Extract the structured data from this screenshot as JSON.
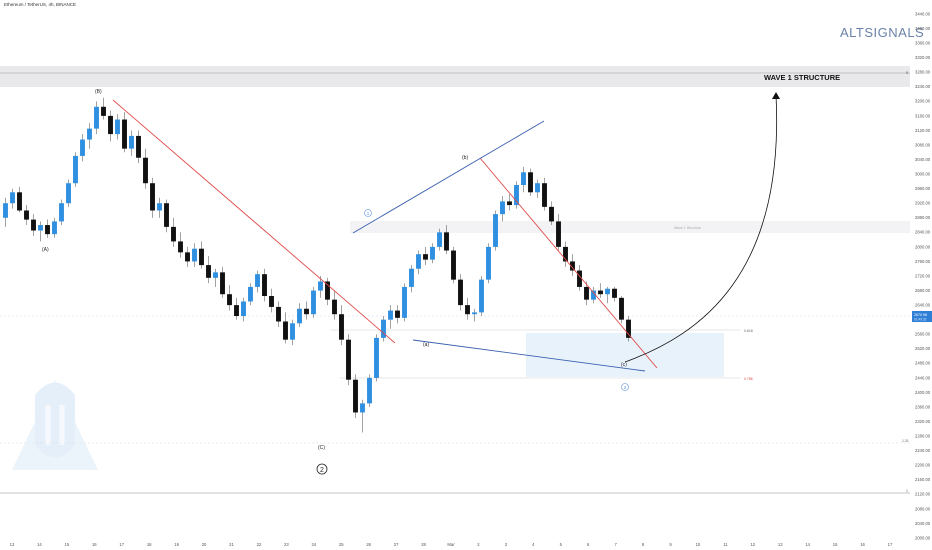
{
  "header": {
    "symbol": "Ethereum / TetherUS, 4h, BINANCE"
  },
  "brand": {
    "name": "ALTSIGNALS",
    "color": "#6a82a8"
  },
  "zones": {
    "wave1_label": "WAVE 1 STRUCTURE",
    "wave1_zero": "0",
    "support_label": "1",
    "fib_0618": "0.618",
    "fib_0786": "0.786",
    "fib_1_31": "1.31",
    "mid_box_label": "Wave 1 Structure"
  },
  "price_tag": {
    "value": "2670.98",
    "sub": "01:49:32",
    "color": "#2f7fd6"
  },
  "chart_data": {
    "type": "candlestick",
    "title": "Ethereum / TetherUS, 4h, BINANCE",
    "y_axis": {
      "min": 2000,
      "max": 3440,
      "ticks": [
        3440,
        3400,
        3360,
        3320,
        3280,
        3240,
        3200,
        3160,
        3120,
        3080,
        3040,
        3000,
        2960,
        2920,
        2880,
        2840,
        2800,
        2760,
        2720,
        2680,
        2640,
        2600,
        2560,
        2520,
        2480,
        2440,
        2400,
        2360,
        2320,
        2280,
        2240,
        2200,
        2160,
        2120,
        2080,
        2040,
        2000
      ]
    },
    "x_axis": {
      "ticks": [
        "13",
        "14",
        "15",
        "16",
        "17",
        "18",
        "19",
        "20",
        "21",
        "22",
        "23",
        "24",
        "25",
        "26",
        "27",
        "28",
        "Mar",
        "2",
        "3",
        "4",
        "5",
        "6",
        "7",
        "8",
        "9",
        "10",
        "11",
        "12",
        "13",
        "14",
        "15",
        "16",
        "17"
      ]
    },
    "last_price": 2670.98,
    "levels": [
      {
        "name": "Wave 1 structure",
        "price": 3255
      },
      {
        "name": "0.618",
        "price": 2580
      },
      {
        "name": "0.786",
        "price": 2470
      },
      {
        "name": "1.31",
        "price": 2288
      },
      {
        "name": "1",
        "price": 2175
      }
    ],
    "wave_labels": [
      {
        "text": "(B)",
        "time": 15.8,
        "price": 3235
      },
      {
        "text": "(A)",
        "time": 14.2,
        "price": 2800
      },
      {
        "text": "(C)",
        "time": 24.1,
        "price": 2262
      },
      {
        "text": "(b)",
        "time": 30.5,
        "price": 3060
      },
      {
        "text": "(a)",
        "time": 28.0,
        "price": 2560
      },
      {
        "text": "(c)",
        "time": 35.2,
        "price": 2498
      }
    ],
    "circled_labels": [
      {
        "text": "1",
        "time": 26.6,
        "price": 2912
      },
      {
        "text": "2",
        "time": 24.1,
        "price": 2218
      },
      {
        "text": "2",
        "time": 35.2,
        "price": 2446
      }
    ],
    "candles": [
      [
        13.0,
        2880,
        2935,
        2855,
        2920
      ],
      [
        13.2,
        2920,
        2960,
        2905,
        2950
      ],
      [
        13.4,
        2950,
        2965,
        2895,
        2900
      ],
      [
        13.6,
        2900,
        2915,
        2860,
        2875
      ],
      [
        13.8,
        2875,
        2890,
        2830,
        2845
      ],
      [
        14.0,
        2845,
        2870,
        2815,
        2860
      ],
      [
        14.2,
        2860,
        2875,
        2825,
        2835
      ],
      [
        14.4,
        2835,
        2880,
        2825,
        2870
      ],
      [
        14.6,
        2870,
        2930,
        2860,
        2920
      ],
      [
        14.8,
        2920,
        2985,
        2910,
        2975
      ],
      [
        15.0,
        2975,
        3060,
        2965,
        3050
      ],
      [
        15.2,
        3050,
        3110,
        3035,
        3095
      ],
      [
        15.4,
        3095,
        3140,
        3070,
        3125
      ],
      [
        15.6,
        3125,
        3200,
        3110,
        3185
      ],
      [
        15.8,
        3185,
        3210,
        3150,
        3160
      ],
      [
        16.0,
        3160,
        3175,
        3090,
        3110
      ],
      [
        16.2,
        3110,
        3165,
        3095,
        3150
      ],
      [
        16.4,
        3150,
        3170,
        3060,
        3070
      ],
      [
        16.6,
        3070,
        3120,
        3050,
        3105
      ],
      [
        16.8,
        3105,
        3120,
        3030,
        3045
      ],
      [
        17.0,
        3045,
        3070,
        2960,
        2975
      ],
      [
        17.2,
        2975,
        2990,
        2880,
        2900
      ],
      [
        17.4,
        2900,
        2935,
        2880,
        2920
      ],
      [
        17.6,
        2920,
        2930,
        2840,
        2855
      ],
      [
        17.8,
        2855,
        2880,
        2800,
        2815
      ],
      [
        18.0,
        2815,
        2840,
        2770,
        2785
      ],
      [
        18.2,
        2785,
        2800,
        2745,
        2760
      ],
      [
        18.4,
        2760,
        2810,
        2745,
        2795
      ],
      [
        18.6,
        2795,
        2815,
        2740,
        2750
      ],
      [
        18.8,
        2750,
        2775,
        2700,
        2715
      ],
      [
        19.0,
        2715,
        2740,
        2690,
        2730
      ],
      [
        19.2,
        2730,
        2745,
        2660,
        2670
      ],
      [
        19.4,
        2670,
        2695,
        2625,
        2640
      ],
      [
        19.6,
        2640,
        2660,
        2600,
        2610
      ],
      [
        19.8,
        2610,
        2660,
        2595,
        2650
      ],
      [
        20.0,
        2650,
        2700,
        2640,
        2690
      ],
      [
        20.2,
        2690,
        2735,
        2675,
        2725
      ],
      [
        20.4,
        2725,
        2740,
        2650,
        2665
      ],
      [
        20.6,
        2665,
        2685,
        2620,
        2635
      ],
      [
        20.8,
        2635,
        2650,
        2580,
        2595
      ],
      [
        21.0,
        2595,
        2620,
        2535,
        2545
      ],
      [
        21.2,
        2545,
        2600,
        2530,
        2590
      ],
      [
        21.4,
        2590,
        2645,
        2580,
        2630
      ],
      [
        21.6,
        2630,
        2650,
        2600,
        2615
      ],
      [
        21.8,
        2615,
        2690,
        2605,
        2680
      ],
      [
        22.0,
        2680,
        2720,
        2660,
        2705
      ],
      [
        22.2,
        2705,
        2715,
        2640,
        2655
      ],
      [
        22.4,
        2655,
        2680,
        2600,
        2615
      ],
      [
        22.6,
        2615,
        2640,
        2530,
        2545
      ],
      [
        22.8,
        2545,
        2560,
        2420,
        2435
      ],
      [
        23.0,
        2435,
        2450,
        2330,
        2345
      ],
      [
        23.2,
        2345,
        2380,
        2290,
        2370
      ],
      [
        23.4,
        2370,
        2450,
        2360,
        2440
      ],
      [
        23.6,
        2440,
        2560,
        2430,
        2550
      ],
      [
        23.8,
        2550,
        2610,
        2540,
        2600
      ],
      [
        24.0,
        2600,
        2640,
        2575,
        2625
      ],
      [
        24.2,
        2625,
        2640,
        2590,
        2605
      ],
      [
        24.4,
        2605,
        2700,
        2595,
        2690
      ],
      [
        24.6,
        2690,
        2750,
        2675,
        2740
      ],
      [
        24.8,
        2740,
        2790,
        2725,
        2780
      ],
      [
        25.0,
        2780,
        2800,
        2750,
        2765
      ],
      [
        25.2,
        2765,
        2810,
        2755,
        2800
      ],
      [
        25.4,
        2800,
        2850,
        2790,
        2840
      ],
      [
        25.6,
        2840,
        2860,
        2780,
        2790
      ],
      [
        25.8,
        2790,
        2800,
        2700,
        2710
      ],
      [
        26.0,
        2710,
        2725,
        2625,
        2640
      ],
      [
        26.2,
        2640,
        2660,
        2600,
        2615
      ],
      [
        26.4,
        2615,
        2630,
        2595,
        2620
      ],
      [
        26.6,
        2620,
        2720,
        2610,
        2710
      ],
      [
        26.8,
        2710,
        2810,
        2700,
        2800
      ],
      [
        27.0,
        2800,
        2900,
        2790,
        2890
      ],
      [
        27.2,
        2890,
        2940,
        2870,
        2925
      ],
      [
        27.4,
        2925,
        2945,
        2900,
        2915
      ],
      [
        27.6,
        2915,
        2980,
        2905,
        2970
      ],
      [
        27.8,
        2970,
        3020,
        2950,
        3005
      ],
      [
        28.0,
        3005,
        3015,
        2940,
        2950
      ],
      [
        28.2,
        2950,
        2985,
        2935,
        2975
      ],
      [
        28.4,
        2975,
        2990,
        2900,
        2910
      ],
      [
        28.6,
        2910,
        2925,
        2860,
        2870
      ],
      [
        28.8,
        2870,
        2890,
        2790,
        2800
      ],
      [
        29.0,
        2800,
        2815,
        2745,
        2760
      ],
      [
        29.2,
        2760,
        2780,
        2720,
        2735
      ],
      [
        29.4,
        2735,
        2750,
        2680,
        2690
      ],
      [
        29.6,
        2690,
        2705,
        2640,
        2655
      ],
      [
        29.8,
        2655,
        2690,
        2645,
        2680
      ],
      [
        30.0,
        2680,
        2700,
        2660,
        2670
      ],
      [
        30.2,
        2670,
        2690,
        2645,
        2685
      ],
      [
        30.4,
        2685,
        2690,
        2650,
        2660
      ],
      [
        30.6,
        2660,
        2665,
        2590,
        2600
      ],
      [
        30.8,
        2600,
        2610,
        2540,
        2550
      ]
    ]
  }
}
